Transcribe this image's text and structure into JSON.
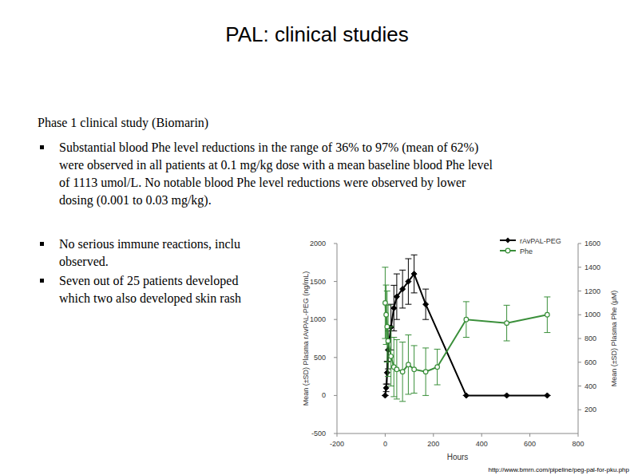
{
  "title": "PAL: clinical studies",
  "heading": "Phase 1 clinical study (Biomarin)",
  "bullets": [
    {
      "lines": [
        "Substantial blood Phe level reductions in the range of 36% to 97% (mean of 62%)",
        "were observed in all patients at 0.1 mg/kg dose with a mean baseline blood Phe level",
        "of 1113 umol/L. No notable blood Phe level reductions were observed by lower",
        "dosing (0.001 to 0.03 mg/kg)."
      ]
    },
    {
      "lines": [
        "No serious immune reactions, inclu",
        "observed."
      ]
    },
    {
      "lines": [
        "Seven out of 25 patients developed",
        "which two also developed skin rash"
      ]
    }
  ],
  "source": "http://www.bmrn.com/pipeline/peg-pal-for-pku.php",
  "chart_data": {
    "type": "line",
    "x_label": "Hours",
    "y_label": "Mean (±SD) Plasma rAvPAL-PEG (ng/mL)",
    "y2_label": "Mean (±SD) Plasma Phe (μM)",
    "xlim": [
      -200,
      800
    ],
    "xticks": [
      -200,
      0,
      200,
      400,
      600,
      800
    ],
    "ylim": [
      -500,
      2000
    ],
    "yticks": [
      -500,
      0,
      500,
      1000,
      1500,
      2000
    ],
    "y2lim": [
      0,
      1600
    ],
    "y2ticks": [
      200,
      400,
      600,
      800,
      1000,
      1200,
      1400,
      1600
    ],
    "legend": "top-right",
    "series": [
      {
        "name": "rAvPAL-PEG",
        "color": "#000000",
        "marker": "diamond",
        "x": [
          0,
          4,
          8,
          12,
          24,
          36,
          48,
          72,
          96,
          120,
          168,
          336,
          504,
          672
        ],
        "values": [
          0,
          100,
          300,
          600,
          900,
          1150,
          1300,
          1400,
          1500,
          1600,
          1200,
          0,
          0,
          0
        ],
        "error": [
          0,
          50,
          150,
          250,
          300,
          300,
          300,
          250,
          300,
          250,
          200,
          0,
          0,
          0
        ]
      },
      {
        "name": "Phe",
        "color": "#3a8f3a",
        "marker": "circle",
        "axis": "y2",
        "x": [
          0,
          4,
          8,
          12,
          24,
          36,
          48,
          72,
          96,
          120,
          168,
          216,
          336,
          504,
          672
        ],
        "values": [
          1100,
          1000,
          900,
          780,
          650,
          560,
          540,
          520,
          580,
          540,
          520,
          560,
          960,
          930,
          1000
        ],
        "error": [
          300,
          250,
          300,
          300,
          250,
          250,
          250,
          250,
          250,
          200,
          200,
          150,
          150,
          150,
          150
        ]
      }
    ]
  }
}
